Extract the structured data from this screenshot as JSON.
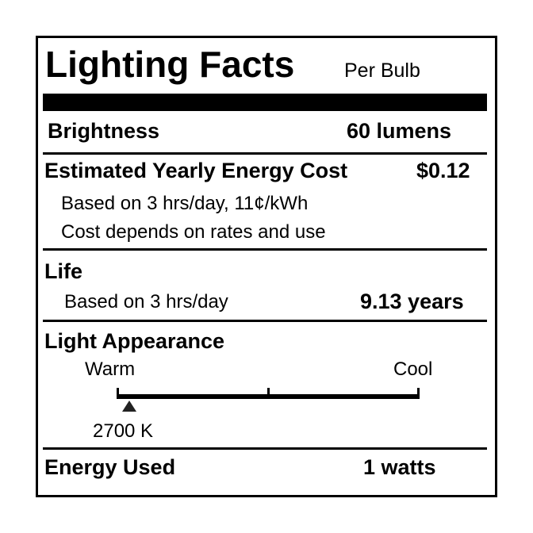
{
  "title": "Lighting Facts",
  "subtitle": "Per Bulb",
  "brightness": {
    "label": "Brightness",
    "value": "60 lumens"
  },
  "cost": {
    "label": "Estimated Yearly Energy Cost",
    "value": "$0.12",
    "note1": "Based on 3 hrs/day, 11¢/kWh",
    "note2": "Cost depends on rates and use"
  },
  "life": {
    "label": "Life",
    "note": "Based on 3 hrs/day",
    "value": "9.13 years"
  },
  "appearance": {
    "label": "Light Appearance",
    "warm": "Warm",
    "cool": "Cool",
    "marker": "2700 K",
    "marker_position_fraction": 0.04
  },
  "energy": {
    "label": "Energy Used",
    "value": "1 watts"
  }
}
